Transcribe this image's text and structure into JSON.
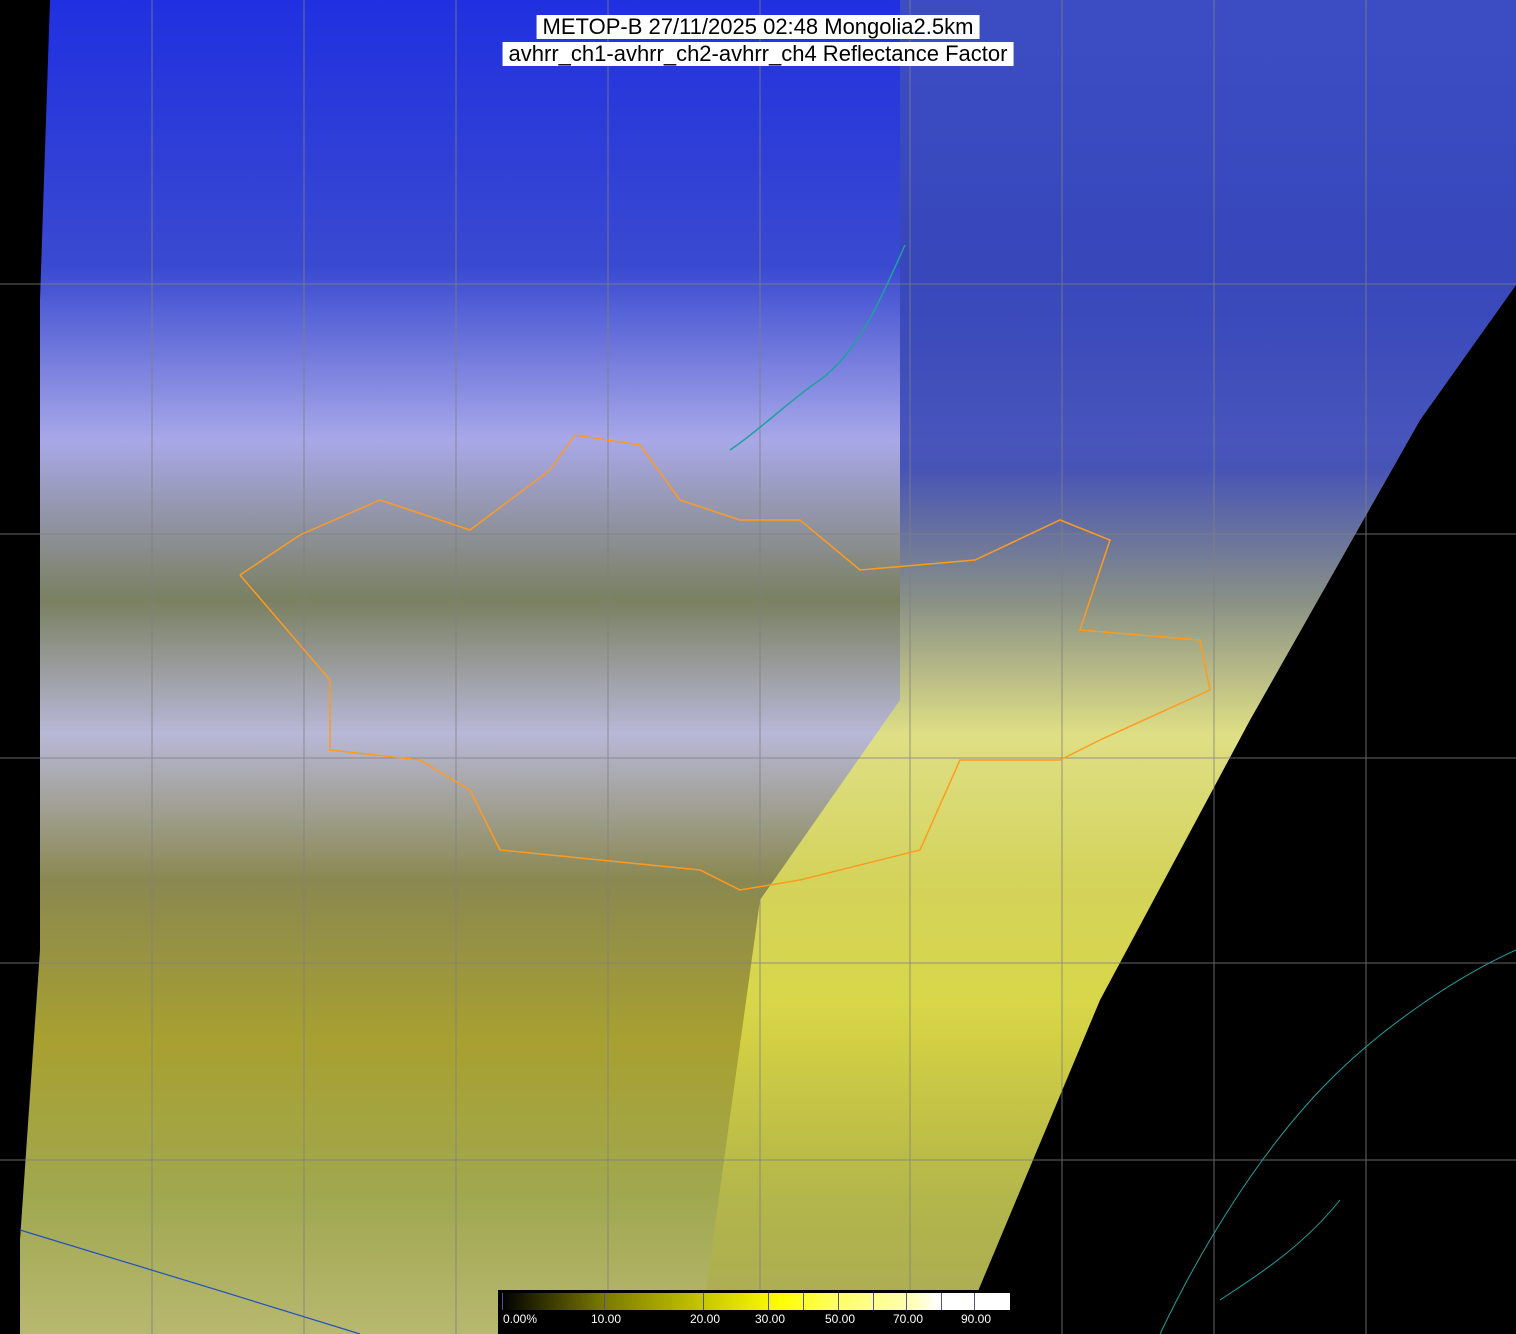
{
  "title": {
    "line1": "METOP-B 27/11/2025 02:48 Mongolia2.5km",
    "line2": "avhrr_ch1-avhrr_ch2-avhrr_ch4 Reflectance Factor"
  },
  "colorbar": {
    "labels": [
      "0.00%",
      "10.00",
      "20.00",
      "30.00",
      "50.00",
      "70.00",
      "90.00"
    ],
    "tick_values": [
      0,
      10,
      20,
      30,
      40,
      50,
      60,
      70,
      80,
      90
    ],
    "colors": [
      "#000000",
      "#7a7a00",
      "#c8c800",
      "#ffff00",
      "#ffffb0",
      "#ffffff"
    ]
  },
  "colors": {
    "cloud_blue": "#2a3fd8",
    "cloud_white": "#c8c8f0",
    "surface_yellow": "#c8c840",
    "border_orange": "#ff9a20",
    "coast_cyan": "#20a0a0",
    "no_data": "#000000"
  }
}
